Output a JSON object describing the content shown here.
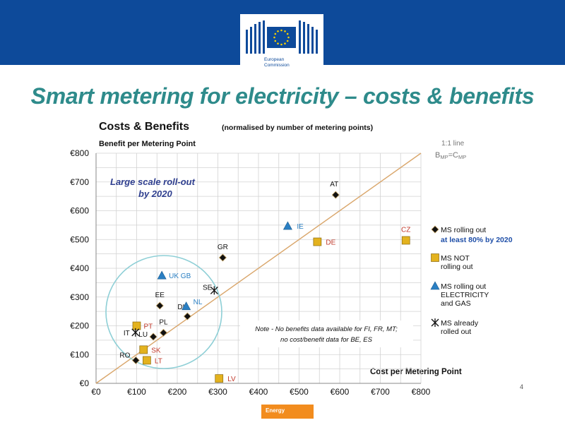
{
  "slide": {
    "title": "Smart metering for electricity – costs & benefits",
    "page_number": "4",
    "footer_tag": "Energy",
    "logo_text": [
      "European",
      "Commission"
    ]
  },
  "chart_data": {
    "type": "scatter",
    "title": "Costs & Benefits",
    "subtitle": "(normalised by number of metering points)",
    "xlabel": "Cost per Metering Point",
    "ylabel": "Benefit per Metering Point",
    "xlim": [
      0,
      800
    ],
    "ylim": [
      0,
      800
    ],
    "x_ticks": [
      "€0",
      "€100",
      "€200",
      "€300",
      "€400",
      "€500",
      "€600",
      "€700",
      "€800"
    ],
    "y_ticks": [
      "€0",
      "€100",
      "€200",
      "€300",
      "€400",
      "€500",
      "€600",
      "€700",
      "€800"
    ],
    "grid": true,
    "reference_line": {
      "label": "1:1 line",
      "formula": "B",
      "formula_sub": "MP",
      "formula_eq": "=C",
      "formula_sub2": "MP",
      "color": "#d9a66b"
    },
    "annotation": {
      "lines": [
        "Large scale roll-out",
        "by 2020"
      ]
    },
    "note": {
      "lines": [
        "Note - No benefits data available for FI, FR, MT;",
        "no cost/benefit data for BE, ES"
      ]
    },
    "series": [
      {
        "key": "rolling",
        "marker": "diamond",
        "color": "#111111",
        "label_color": "#111111",
        "legend": [
          "MS rolling out"
        ],
        "legend_highlight": "at least 80% by 2020",
        "points": [
          {
            "label": "AT",
            "x": 590,
            "y": 655
          },
          {
            "label": "GR",
            "x": 312,
            "y": 437
          },
          {
            "label": "EE",
            "x": 157,
            "y": 270
          },
          {
            "label": "DK",
            "x": 225,
            "y": 233
          },
          {
            "label": "PL",
            "x": 166,
            "y": 176
          },
          {
            "label": "LU",
            "x": 141,
            "y": 162
          },
          {
            "label": "RO",
            "x": 98,
            "y": 80
          }
        ]
      },
      {
        "key": "not_rolling",
        "marker": "square",
        "color": "#e3b21e",
        "label_color": "#c0392b",
        "legend": [
          "MS NOT",
          "rolling out"
        ],
        "points": [
          {
            "label": "CZ",
            "x": 763,
            "y": 497
          },
          {
            "label": "DE",
            "x": 545,
            "y": 492
          },
          {
            "label": "PT",
            "x": 100,
            "y": 200
          },
          {
            "label": "SK",
            "x": 117,
            "y": 117
          },
          {
            "label": "LT",
            "x": 125,
            "y": 80
          },
          {
            "label": "LV",
            "x": 303,
            "y": 17
          }
        ]
      },
      {
        "key": "elec_gas",
        "marker": "triangle",
        "color": "#2a7fc3",
        "label_color": "#2a7fc3",
        "legend": [
          "MS rolling out",
          "ELECTRICITY",
          "and GAS"
        ],
        "points": [
          {
            "label": "IE",
            "x": 472,
            "y": 547
          },
          {
            "label": "UK GB",
            "x": 162,
            "y": 375
          },
          {
            "label": "NL",
            "x": 222,
            "y": 268
          }
        ]
      },
      {
        "key": "rolled",
        "marker": "cross",
        "color": "#111111",
        "label_color": "#111111",
        "legend": [
          "MS already",
          "rolled out"
        ],
        "points": [
          {
            "label": "SE",
            "x": 291,
            "y": 323
          },
          {
            "label": "IT",
            "x": 97,
            "y": 177
          }
        ]
      }
    ]
  }
}
